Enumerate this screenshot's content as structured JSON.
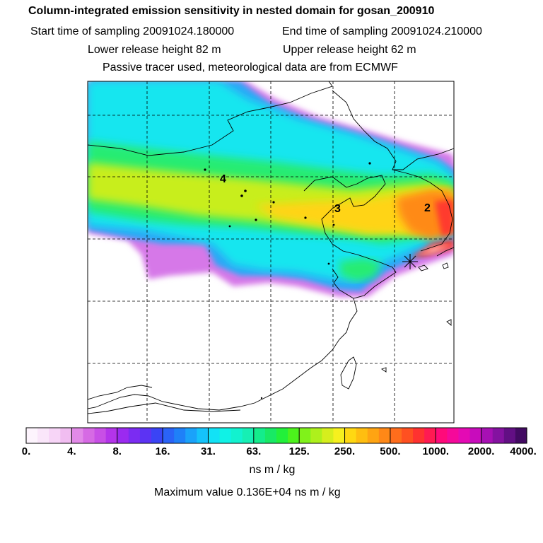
{
  "header": {
    "title": "Column-integrated emission sensitivity in nested domain for gosan_200910",
    "start_time": "Start time of sampling 20091024.180000",
    "end_time": "End time of sampling 20091024.210000",
    "lower_height": "Lower release height   82 m",
    "upper_height": "Upper release height   62 m",
    "tracer_note": "Passive tracer used, meteorological data are from ECMWF"
  },
  "map": {
    "labels": [
      {
        "text": "4"
      },
      {
        "text": "3"
      },
      {
        "text": "2"
      }
    ],
    "receptor_marker": "star-marker"
  },
  "colorbar": {
    "tick_labels": [
      "0.",
      "4.",
      "8.",
      "16.",
      "31.",
      "63.",
      "125.",
      "250.",
      "500.",
      "1000.",
      "2000.",
      "4000."
    ],
    "colors": [
      "#fdf4fd",
      "#fae6fa",
      "#f7d5f7",
      "#f1bdf1",
      "#e28ae8",
      "#d66ae4",
      "#c84fe6",
      "#b434ea",
      "#9b2af0",
      "#7b2cf2",
      "#5c33f3",
      "#3a44f5",
      "#2a63f7",
      "#1f80f8",
      "#1aa2fa",
      "#15c3fb",
      "#12e2f6",
      "#10f2e6",
      "#12f2cf",
      "#16efb4",
      "#14ec8c",
      "#18e965",
      "#22f03a",
      "#4cf21c",
      "#80f21a",
      "#aef01c",
      "#d6ee1d",
      "#f6f01e",
      "#ffd812",
      "#ffbe10",
      "#ffa412",
      "#ff8817",
      "#ff6d1c",
      "#ff5021",
      "#ff3230",
      "#ff1a52",
      "#ff0a7a",
      "#f5099a",
      "#e40ab4",
      "#c80cbc",
      "#a710b4",
      "#8412a0",
      "#620f84",
      "#420a62"
    ],
    "units": "ns m / kg"
  },
  "footer": {
    "max_value": "Maximum value  0.136E+04 ns m / kg"
  }
}
